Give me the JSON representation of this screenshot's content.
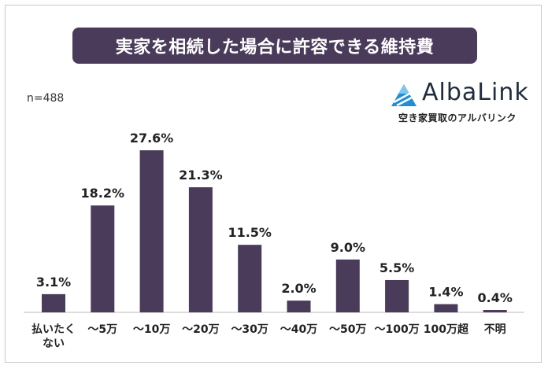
{
  "title": "実家を相続した場合に許容できる維持費",
  "sample_size": "n=488",
  "logo": {
    "name": "AlbaLink",
    "subtitle": "空き家買取のアルバリンク",
    "accent_color": "#1e8fd6"
  },
  "colors": {
    "bar": "#4a3b5b",
    "title_bg": "#4a3b5b"
  },
  "chart_data": {
    "type": "bar",
    "categories": [
      "払いたく\nない",
      "～5万",
      "～10万",
      "～20万",
      "～30万",
      "～40万",
      "～50万",
      "～100万",
      "100万超",
      "不明"
    ],
    "values": [
      3.1,
      18.2,
      27.6,
      21.3,
      11.5,
      2.0,
      9.0,
      5.5,
      1.4,
      0.4
    ],
    "value_labels": [
      "3.1%",
      "18.2%",
      "27.6%",
      "21.3%",
      "11.5%",
      "2.0%",
      "9.0%",
      "5.5%",
      "1.4%",
      "0.4%"
    ],
    "ylim": [
      0,
      27.6
    ],
    "grid": false,
    "title": "",
    "xlabel": "",
    "ylabel": ""
  }
}
